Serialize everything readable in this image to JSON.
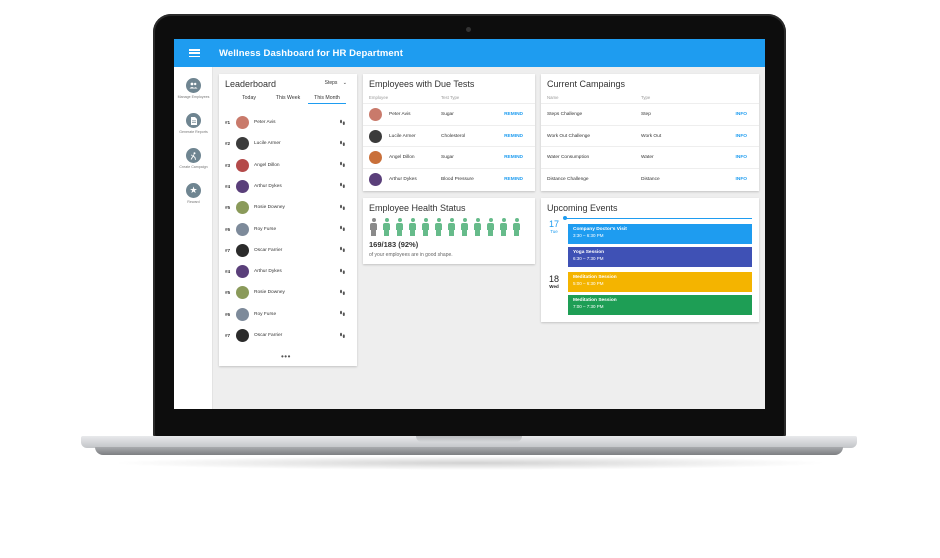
{
  "app": {
    "title": "Wellness Dashboard for HR Department"
  },
  "sidebar": {
    "items": [
      {
        "label": "Manage Employees",
        "icon": "people-icon"
      },
      {
        "label": "Generate Reports",
        "icon": "document-icon"
      },
      {
        "label": "Create Campaign",
        "icon": "run-icon"
      },
      {
        "label": "Reward",
        "icon": "star-icon"
      }
    ]
  },
  "leaderboard": {
    "title": "Leaderboard",
    "metric": "Steps",
    "tabs": [
      "Today",
      "This Week",
      "This Month"
    ],
    "active_tab": "This Month",
    "rows": [
      {
        "rank": "#1",
        "name": "Peter Avis",
        "avatar_color": "#c97a6b"
      },
      {
        "rank": "#2",
        "name": "Lucile Armer",
        "avatar_color": "#3b3b3b"
      },
      {
        "rank": "#3",
        "name": "Angel Dillon",
        "avatar_color": "#b44a4a"
      },
      {
        "rank": "#4",
        "name": "Arthur Dykes",
        "avatar_color": "#5a3f7a"
      },
      {
        "rank": "#5",
        "name": "Rosie Downey",
        "avatar_color": "#8a9a5a"
      },
      {
        "rank": "#6",
        "name": "Roy Furse",
        "avatar_color": "#7d8a9a"
      },
      {
        "rank": "#7",
        "name": "Oscar Farrier",
        "avatar_color": "#2b2b2b"
      },
      {
        "rank": "#4",
        "name": "Arthur Dykes",
        "avatar_color": "#5a3f7a"
      },
      {
        "rank": "#5",
        "name": "Rosie Downey",
        "avatar_color": "#8a9a5a"
      },
      {
        "rank": "#6",
        "name": "Roy Furse",
        "avatar_color": "#7d8a9a"
      },
      {
        "rank": "#7",
        "name": "Oscar Farrier",
        "avatar_color": "#2b2b2b"
      }
    ],
    "more": "•••"
  },
  "due_tests": {
    "title": "Employees with Due Tests",
    "col_employee": "Employee",
    "col_test": "Test Type",
    "rows": [
      {
        "name": "Peter Avis",
        "test": "Sugar",
        "action": "REMIND",
        "avatar_color": "#c97a6b"
      },
      {
        "name": "Lucile Armer",
        "test": "Cholesterol",
        "action": "REMIND",
        "avatar_color": "#3b3b3b"
      },
      {
        "name": "Angel Dillon",
        "test": "Sugar",
        "action": "REMIND",
        "avatar_color": "#c9703a"
      },
      {
        "name": "Arthur Dykes",
        "test": "Blood Pressure",
        "action": "REMIND",
        "avatar_color": "#5a3f7a"
      }
    ]
  },
  "health": {
    "title": "Employee Health Status",
    "stat": "169/183 (92%)",
    "subtitle": "of your employees are in good shape.",
    "healthy_fraction": 0.92,
    "unhealthy_color": "#8a8a8a",
    "healthy_color": "#66bb8a"
  },
  "campaigns": {
    "title": "Current Campaings",
    "col_name": "Name",
    "col_type": "Type",
    "rows": [
      {
        "name": "Steps Challenge",
        "type": "Step",
        "action": "INFO"
      },
      {
        "name": "Work Out Challenge",
        "type": "Work Out",
        "action": "INFO"
      },
      {
        "name": "Water Consumption",
        "type": "Water",
        "action": "INFO"
      },
      {
        "name": "Distance Challenge",
        "type": "Distance",
        "action": "INFO"
      }
    ]
  },
  "events": {
    "title": "Upcoming Events",
    "days": [
      {
        "num": "17",
        "dow": "Tue",
        "color": "#1e9cf0"
      },
      {
        "num": "18",
        "dow": "Wed",
        "color": "#222222"
      }
    ],
    "items": [
      {
        "title": "Company Doctor's Visit",
        "time": "3:30 – 6:30 PM",
        "color": "#1e9cf0"
      },
      {
        "title": "Yoga Session",
        "time": "6:30 – 7:30 PM",
        "color": "#3f51b5"
      },
      {
        "title": "Meditation Session",
        "time": "5:00 – 6:30 PM",
        "color": "#f4b400"
      },
      {
        "title": "Meditation Session",
        "time": "7:00 – 7:30 PM",
        "color": "#1e9e55"
      }
    ]
  }
}
